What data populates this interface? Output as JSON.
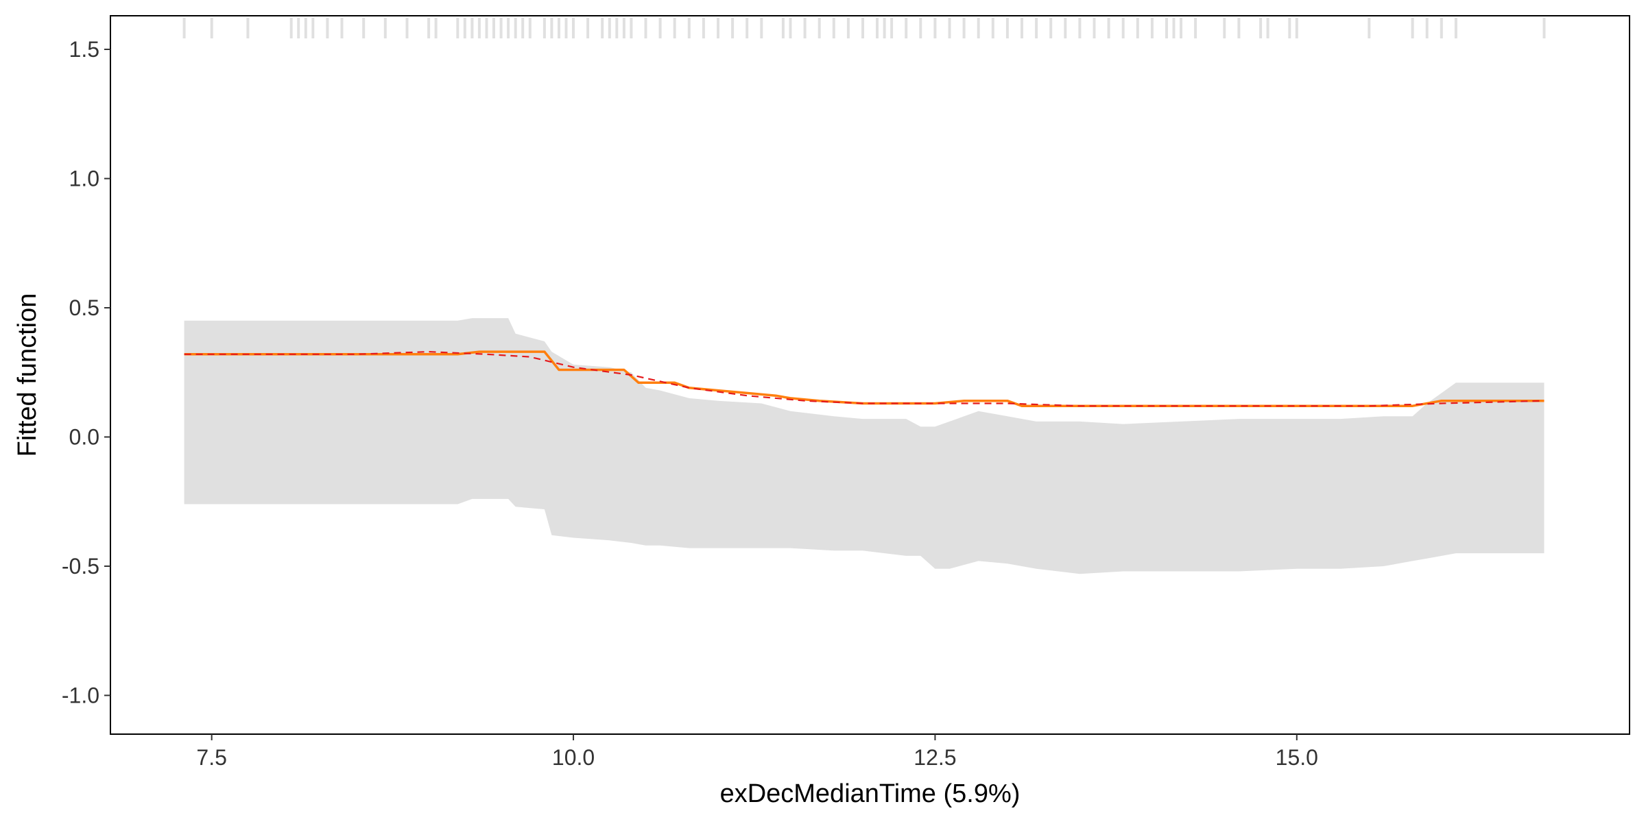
{
  "chart_data": {
    "type": "line",
    "title": "",
    "xlabel": "exDecMedianTime  (5.9%)",
    "ylabel": "Fitted function",
    "xlim": [
      6.8,
      17.3
    ],
    "ylim": [
      -1.15,
      1.63
    ],
    "grid": false,
    "legend": "none",
    "x_ticks": [
      7.5,
      10.0,
      12.5,
      15.0
    ],
    "x_tick_labels": [
      "7.5",
      "10.0",
      "12.5",
      "15.0"
    ],
    "y_ticks": [
      1.5,
      1.0,
      0.5,
      0.0,
      -0.5,
      -1.0
    ],
    "y_tick_labels": [
      "1.5",
      "1.0",
      "0.5",
      "0.0",
      "-0.5",
      "-1.0"
    ],
    "colors": {
      "band": "#e0e0e0",
      "solid_line": "#ff7f0e",
      "dashed_line": "#e41a1c",
      "rug": "#e0e0e0",
      "axis": "#000000"
    },
    "band": {
      "x": [
        7.31,
        9.2,
        9.3,
        9.55,
        9.6,
        9.8,
        9.85,
        10.0,
        10.25,
        10.4,
        10.5,
        10.6,
        10.8,
        11.0,
        11.3,
        11.5,
        11.8,
        12.0,
        12.3,
        12.4,
        12.5,
        12.6,
        12.8,
        13.0,
        13.2,
        13.5,
        13.8,
        14.2,
        14.6,
        15.0,
        15.3,
        15.6,
        15.8,
        15.9,
        16.1,
        16.71
      ],
      "upper": [
        0.45,
        0.45,
        0.46,
        0.46,
        0.4,
        0.37,
        0.33,
        0.28,
        0.27,
        0.25,
        0.19,
        0.18,
        0.15,
        0.14,
        0.13,
        0.1,
        0.08,
        0.07,
        0.07,
        0.04,
        0.04,
        0.06,
        0.1,
        0.08,
        0.06,
        0.06,
        0.05,
        0.06,
        0.07,
        0.07,
        0.07,
        0.08,
        0.08,
        0.13,
        0.21,
        0.21
      ],
      "lower": [
        -0.26,
        -0.26,
        -0.24,
        -0.24,
        -0.27,
        -0.28,
        -0.38,
        -0.39,
        -0.4,
        -0.41,
        -0.42,
        -0.42,
        -0.43,
        -0.43,
        -0.43,
        -0.43,
        -0.44,
        -0.44,
        -0.46,
        -0.46,
        -0.51,
        -0.51,
        -0.48,
        -0.49,
        -0.51,
        -0.53,
        -0.52,
        -0.52,
        -0.52,
        -0.51,
        -0.51,
        -0.5,
        -0.48,
        -0.47,
        -0.45,
        -0.45
      ]
    },
    "series": [
      {
        "style": "solid",
        "x": [
          7.31,
          9.2,
          9.35,
          9.8,
          9.9,
          10.35,
          10.45,
          10.7,
          10.8,
          11.0,
          11.2,
          11.4,
          11.5,
          11.7,
          12.0,
          12.5,
          12.7,
          13.0,
          13.1,
          14.0,
          15.0,
          15.8,
          16.0,
          16.71
        ],
        "values": [
          0.32,
          0.32,
          0.33,
          0.33,
          0.26,
          0.26,
          0.21,
          0.21,
          0.19,
          0.18,
          0.17,
          0.16,
          0.15,
          0.14,
          0.13,
          0.13,
          0.14,
          0.14,
          0.12,
          0.12,
          0.12,
          0.12,
          0.14,
          0.14
        ]
      },
      {
        "style": "dashed",
        "x": [
          7.31,
          8.5,
          9.0,
          9.4,
          9.7,
          10.0,
          10.4,
          10.8,
          11.2,
          11.6,
          12.0,
          12.5,
          13.0,
          13.5,
          14.5,
          15.5,
          16.0,
          16.71
        ],
        "values": [
          0.32,
          0.32,
          0.33,
          0.32,
          0.31,
          0.27,
          0.24,
          0.19,
          0.16,
          0.14,
          0.13,
          0.13,
          0.13,
          0.12,
          0.12,
          0.12,
          0.13,
          0.14
        ]
      }
    ],
    "rug_x": [
      7.31,
      7.5,
      7.75,
      8.05,
      8.1,
      8.15,
      8.2,
      8.3,
      8.4,
      8.55,
      8.7,
      8.85,
      9.0,
      9.05,
      9.2,
      9.25,
      9.3,
      9.35,
      9.4,
      9.45,
      9.5,
      9.55,
      9.6,
      9.65,
      9.7,
      9.8,
      9.85,
      9.9,
      9.95,
      10.0,
      10.1,
      10.2,
      10.25,
      10.3,
      10.35,
      10.4,
      10.5,
      10.6,
      10.7,
      10.8,
      10.9,
      11.0,
      11.1,
      11.2,
      11.3,
      11.45,
      11.5,
      11.6,
      11.7,
      11.8,
      11.9,
      12.0,
      12.1,
      12.15,
      12.2,
      12.3,
      12.4,
      12.5,
      12.6,
      12.7,
      12.8,
      12.9,
      13.0,
      13.1,
      13.2,
      13.3,
      13.4,
      13.5,
      13.6,
      13.7,
      13.8,
      13.9,
      14.0,
      14.1,
      14.15,
      14.2,
      14.3,
      14.5,
      14.6,
      14.75,
      14.8,
      14.95,
      15.0,
      15.5,
      15.8,
      15.9,
      16.0,
      16.1,
      16.71
    ]
  }
}
